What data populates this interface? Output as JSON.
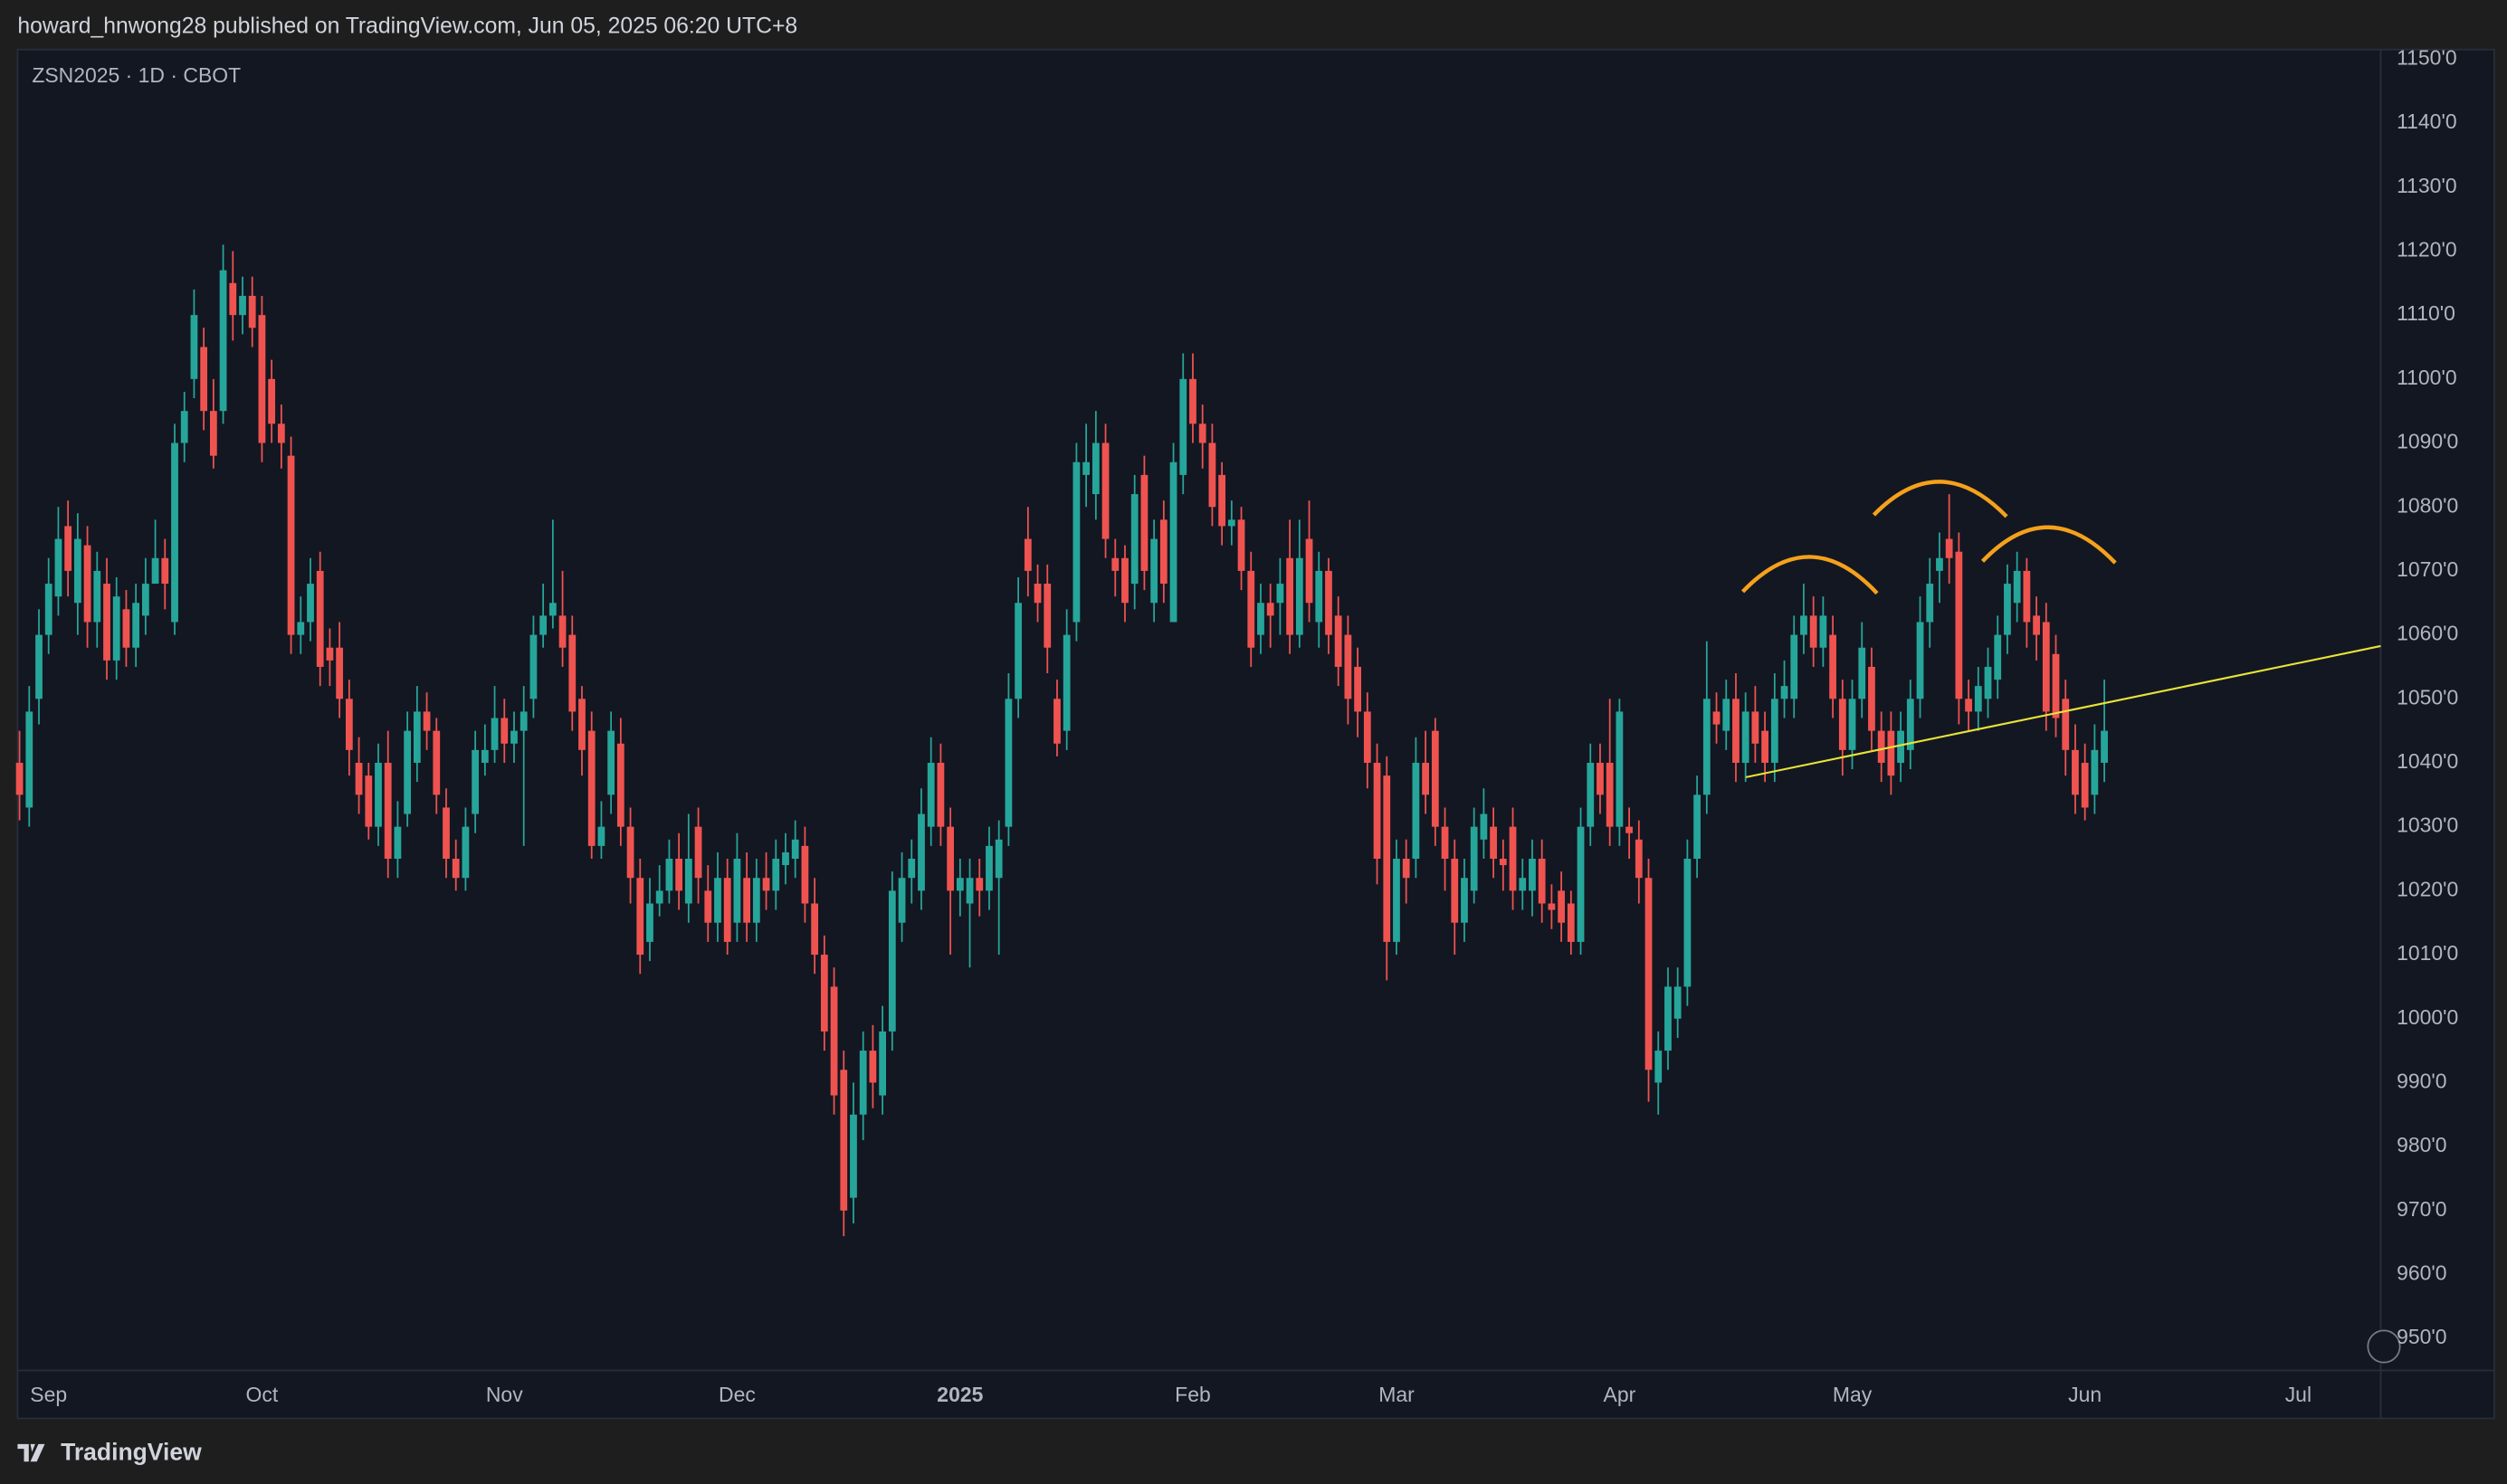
{
  "chart_data": {
    "type": "candlestick",
    "title": "howard_hnwong28 published on TradingView.com, Jun 05, 2025 06:20 UTC+8",
    "symbol": "ZSN2025 · 1D · CBOT",
    "brand": "TradingView",
    "up_color": "#26a69a",
    "down_color": "#ef5350",
    "grid": false,
    "xlim": [
      -0.2,
      243.5
    ],
    "xticks": [
      {
        "value": 3,
        "label": "Sep"
      },
      {
        "value": 25,
        "label": "Oct"
      },
      {
        "value": 50,
        "label": "Nov"
      },
      {
        "value": 74,
        "label": "Dec"
      },
      {
        "value": 97,
        "label": "2025"
      },
      {
        "value": 121,
        "label": "Feb"
      },
      {
        "value": 142,
        "label": "Mar"
      },
      {
        "value": 165,
        "label": "Apr"
      },
      {
        "value": 189,
        "label": "May"
      },
      {
        "value": 213,
        "label": "Jun"
      },
      {
        "value": 235,
        "label": "Jul"
      }
    ],
    "ylim": [
      945,
      1151.5
    ],
    "yticks": [
      {
        "value": 1150,
        "label": "1150'0"
      },
      {
        "value": 1140,
        "label": "1140'0"
      },
      {
        "value": 1130,
        "label": "1130'0"
      },
      {
        "value": 1120,
        "label": "1120'0"
      },
      {
        "value": 1110,
        "label": "1110'0"
      },
      {
        "value": 1100,
        "label": "1100'0"
      },
      {
        "value": 1090,
        "label": "1090'0"
      },
      {
        "value": 1080,
        "label": "1080'0"
      },
      {
        "value": 1070,
        "label": "1070'0"
      },
      {
        "value": 1060,
        "label": "1060'0"
      },
      {
        "value": 1050,
        "label": "1050'0"
      },
      {
        "value": 1040,
        "label": "1040'0"
      },
      {
        "value": 1030,
        "label": "1030'0"
      },
      {
        "value": 1020,
        "label": "1020'0"
      },
      {
        "value": 1010,
        "label": "1010'0"
      },
      {
        "value": 1000,
        "label": "1000'0"
      },
      {
        "value": 990,
        "label": "990'0"
      },
      {
        "value": 980,
        "label": "980'0"
      },
      {
        "value": 970,
        "label": "970'0"
      },
      {
        "value": 960,
        "label": "960'0"
      },
      {
        "value": 950,
        "label": "950'0"
      }
    ],
    "open": [
      1040,
      1033,
      1050,
      1060,
      1066,
      1077,
      1065,
      1074,
      1062,
      1068,
      1056,
      1064,
      1058,
      1063,
      1068,
      1072,
      1062,
      1090,
      1100,
      1105,
      1095,
      1095,
      1115,
      1110,
      1113,
      1110,
      1100,
      1093,
      1088,
      1060,
      1062,
      1070,
      1058,
      1058,
      1050,
      1040,
      1038,
      1030,
      1040,
      1025,
      1032,
      1040,
      1048,
      1045,
      1033,
      1025,
      1022,
      1032,
      1040,
      1042,
      1047,
      1043,
      1045,
      1050,
      1060,
      1063,
      1063,
      1060,
      1050,
      1045,
      1027,
      1035,
      1043,
      1030,
      1022,
      1012,
      1018,
      1020,
      1025,
      1018,
      1030,
      1020,
      1015,
      1022,
      1015,
      1022,
      1015,
      1022,
      1020,
      1024,
      1025,
      1027,
      1018,
      1010,
      1005,
      992,
      972,
      985,
      995,
      988,
      998,
      1015,
      1022,
      1020,
      1030,
      1040,
      1030,
      1020,
      1018,
      1022,
      1020,
      1022,
      1030,
      1050,
      1075,
      1068,
      1068,
      1050,
      1045,
      1062,
      1085,
      1082,
      1090,
      1072,
      1072,
      1068,
      1085,
      1065,
      1078,
      1062,
      1085,
      1100,
      1093,
      1090,
      1085,
      1077,
      1078,
      1070,
      1060,
      1065,
      1065,
      1072,
      1060,
      1075,
      1062,
      1070,
      1063,
      1060,
      1055,
      1048,
      1040,
      1038,
      1012,
      1025,
      1025,
      1040,
      1045,
      1030,
      1025,
      1015,
      1020,
      1028,
      1030,
      1025,
      1030,
      1020,
      1020,
      1025,
      1018,
      1020,
      1018,
      1012,
      1030,
      1040,
      1040,
      1030,
      1030,
      1028,
      1022,
      990,
      995,
      1000,
      1005,
      1025,
      1035,
      1048,
      1045,
      1050,
      1040,
      1048,
      1045,
      1040,
      1050,
      1050,
      1060,
      1063,
      1058,
      1060,
      1050,
      1042,
      1050,
      1055,
      1045,
      1045,
      1040,
      1042,
      1050,
      1062,
      1070,
      1075,
      1073,
      1050,
      1048,
      1050,
      1053,
      1060,
      1065,
      1070,
      1063,
      1062,
      1057,
      1050,
      1042,
      1040,
      1035,
      1040
    ],
    "high": [
      1045,
      1052,
      1064,
      1072,
      1080,
      1081,
      1079,
      1077,
      1073,
      1072,
      1069,
      1067,
      1068,
      1072,
      1078,
      1075,
      1093,
      1098,
      1114,
      1108,
      1100,
      1121,
      1120,
      1116,
      1116,
      1113,
      1103,
      1096,
      1091,
      1066,
      1072,
      1073,
      1061,
      1062,
      1053,
      1044,
      1040,
      1043,
      1045,
      1034,
      1048,
      1052,
      1051,
      1047,
      1036,
      1028,
      1033,
      1045,
      1046,
      1052,
      1050,
      1048,
      1052,
      1063,
      1068,
      1078,
      1070,
      1063,
      1052,
      1048,
      1034,
      1048,
      1047,
      1033,
      1025,
      1022,
      1024,
      1028,
      1029,
      1032,
      1033,
      1024,
      1026,
      1025,
      1029,
      1026,
      1025,
      1026,
      1028,
      1029,
      1031,
      1030,
      1022,
      1013,
      1008,
      995,
      990,
      998,
      999,
      1002,
      1023,
      1026,
      1028,
      1036,
      1044,
      1043,
      1033,
      1025,
      1025,
      1025,
      1030,
      1031,
      1054,
      1069,
      1080,
      1071,
      1071,
      1053,
      1064,
      1090,
      1093,
      1095,
      1093,
      1075,
      1074,
      1085,
      1088,
      1078,
      1081,
      1090,
      1104,
      1104,
      1096,
      1093,
      1087,
      1081,
      1080,
      1073,
      1068,
      1068,
      1072,
      1078,
      1078,
      1081,
      1073,
      1072,
      1066,
      1063,
      1058,
      1051,
      1043,
      1041,
      1028,
      1028,
      1044,
      1045,
      1047,
      1033,
      1028,
      1025,
      1033,
      1036,
      1033,
      1028,
      1033,
      1025,
      1028,
      1028,
      1021,
      1023,
      1020,
      1033,
      1043,
      1043,
      1050,
      1050,
      1033,
      1031,
      1025,
      998,
      1008,
      1008,
      1028,
      1038,
      1059,
      1051,
      1053,
      1054,
      1051,
      1052,
      1048,
      1054,
      1056,
      1063,
      1068,
      1066,
      1066,
      1063,
      1053,
      1053,
      1062,
      1058,
      1048,
      1048,
      1048,
      1053,
      1066,
      1072,
      1076,
      1082,
      1076,
      1053,
      1055,
      1058,
      1063,
      1071,
      1073,
      1072,
      1066,
      1065,
      1060,
      1053,
      1046,
      1043,
      1046,
      1053
    ],
    "low": [
      1031,
      1030,
      1046,
      1057,
      1063,
      1066,
      1060,
      1058,
      1058,
      1053,
      1053,
      1055,
      1055,
      1060,
      1068,
      1064,
      1060,
      1087,
      1097,
      1092,
      1086,
      1093,
      1106,
      1107,
      1105,
      1087,
      1090,
      1086,
      1057,
      1057,
      1059,
      1052,
      1052,
      1047,
      1038,
      1032,
      1028,
      1027,
      1022,
      1022,
      1030,
      1037,
      1042,
      1032,
      1022,
      1020,
      1020,
      1029,
      1038,
      1040,
      1040,
      1040,
      1027,
      1047,
      1058,
      1061,
      1055,
      1045,
      1038,
      1025,
      1025,
      1032,
      1027,
      1018,
      1007,
      1009,
      1016,
      1018,
      1017,
      1015,
      1018,
      1012,
      1012,
      1010,
      1012,
      1012,
      1012,
      1017,
      1017,
      1021,
      1022,
      1015,
      1007,
      995,
      985,
      966,
      968,
      981,
      986,
      985,
      995,
      1012,
      1018,
      1017,
      1027,
      1027,
      1010,
      1016,
      1008,
      1016,
      1017,
      1010,
      1027,
      1047,
      1066,
      1062,
      1054,
      1041,
      1042,
      1059,
      1080,
      1078,
      1072,
      1066,
      1062,
      1064,
      1067,
      1062,
      1065,
      1062,
      1082,
      1090,
      1086,
      1077,
      1074,
      1074,
      1067,
      1055,
      1057,
      1058,
      1060,
      1057,
      1058,
      1062,
      1058,
      1057,
      1052,
      1046,
      1044,
      1036,
      1021,
      1006,
      1010,
      1018,
      1022,
      1032,
      1027,
      1020,
      1010,
      1012,
      1018,
      1025,
      1022,
      1020,
      1017,
      1017,
      1016,
      1015,
      1014,
      1012,
      1010,
      1010,
      1027,
      1032,
      1027,
      1027,
      1025,
      1018,
      987,
      985,
      992,
      997,
      1002,
      1022,
      1032,
      1043,
      1042,
      1037,
      1037,
      1040,
      1037,
      1037,
      1047,
      1047,
      1057,
      1055,
      1055,
      1047,
      1038,
      1039,
      1047,
      1042,
      1037,
      1035,
      1037,
      1039,
      1047,
      1058,
      1065,
      1068,
      1046,
      1045,
      1045,
      1047,
      1050,
      1057,
      1062,
      1058,
      1056,
      1045,
      1044,
      1038,
      1032,
      1031,
      1032,
      1037
    ],
    "close": [
      1035,
      1048,
      1060,
      1068,
      1075,
      1070,
      1075,
      1062,
      1070,
      1056,
      1066,
      1058,
      1065,
      1068,
      1072,
      1068,
      1090,
      1095,
      1110,
      1095,
      1088,
      1117,
      1110,
      1113,
      1108,
      1090,
      1093,
      1090,
      1060,
      1062,
      1068,
      1055,
      1056,
      1050,
      1042,
      1035,
      1030,
      1040,
      1025,
      1030,
      1045,
      1048,
      1045,
      1035,
      1025,
      1022,
      1030,
      1042,
      1042,
      1047,
      1043,
      1045,
      1048,
      1060,
      1063,
      1065,
      1058,
      1048,
      1042,
      1027,
      1030,
      1045,
      1030,
      1022,
      1010,
      1018,
      1020,
      1025,
      1020,
      1025,
      1022,
      1015,
      1022,
      1012,
      1025,
      1015,
      1022,
      1020,
      1025,
      1026,
      1028,
      1018,
      1010,
      998,
      988,
      970,
      985,
      995,
      990,
      998,
      1020,
      1022,
      1025,
      1032,
      1040,
      1030,
      1020,
      1022,
      1022,
      1020,
      1027,
      1028,
      1050,
      1065,
      1070,
      1065,
      1058,
      1043,
      1060,
      1087,
      1087,
      1090,
      1075,
      1070,
      1065,
      1082,
      1070,
      1075,
      1068,
      1087,
      1100,
      1093,
      1090,
      1080,
      1077,
      1078,
      1070,
      1058,
      1065,
      1063,
      1068,
      1060,
      1072,
      1065,
      1070,
      1060,
      1055,
      1050,
      1048,
      1040,
      1025,
      1012,
      1025,
      1022,
      1040,
      1035,
      1030,
      1025,
      1015,
      1022,
      1030,
      1032,
      1025,
      1024,
      1020,
      1022,
      1025,
      1018,
      1017,
      1015,
      1012,
      1030,
      1040,
      1035,
      1030,
      1048,
      1029,
      1022,
      992,
      995,
      1005,
      1005,
      1025,
      1035,
      1050,
      1046,
      1050,
      1040,
      1048,
      1043,
      1040,
      1050,
      1052,
      1060,
      1063,
      1058,
      1063,
      1050,
      1042,
      1050,
      1058,
      1045,
      1040,
      1038,
      1045,
      1050,
      1062,
      1068,
      1072,
      1072,
      1050,
      1048,
      1052,
      1055,
      1060,
      1068,
      1070,
      1062,
      1060,
      1048,
      1047,
      1042,
      1035,
      1033,
      1042,
      1045
    ]
  }
}
